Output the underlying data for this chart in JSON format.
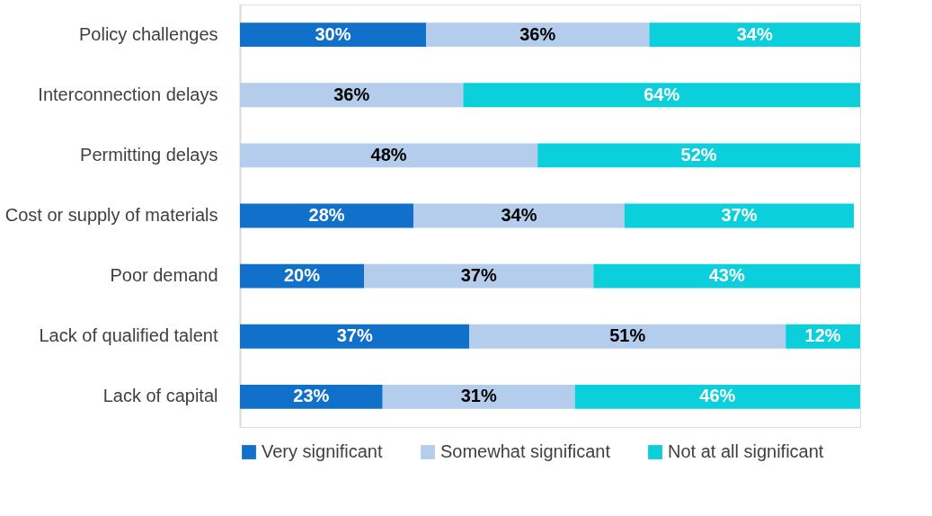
{
  "chart_data": {
    "type": "bar",
    "orientation": "horizontal",
    "stacked": true,
    "legend": "bottom",
    "grid": false,
    "categories": [
      "Policy challenges",
      "Interconnection delays",
      "Permitting delays",
      "Cost or supply of materials",
      "Poor demand",
      "Lack of qualified talent",
      "Lack of capital"
    ],
    "series": [
      {
        "name": "Very significant",
        "color": "#1170c9",
        "values": [
          30,
          null,
          null,
          28,
          20,
          37,
          23
        ],
        "value_labels": [
          "30%",
          null,
          null,
          "28%",
          "20%",
          "37%",
          "23%"
        ]
      },
      {
        "name": "Somewhat significant",
        "color": "#b4cdec",
        "values": [
          36,
          36,
          48,
          34,
          37,
          51,
          31
        ],
        "value_labels": [
          "36%",
          "36%",
          "48%",
          "34%",
          "37%",
          "51%",
          "31%"
        ]
      },
      {
        "name": "Not at all significant",
        "color": "#0bcfda",
        "values": [
          34,
          64,
          52,
          37,
          43,
          12,
          46
        ],
        "value_labels": [
          "34%",
          "64%",
          "52%",
          "37%",
          "43%",
          "12%",
          "46%"
        ]
      }
    ]
  }
}
